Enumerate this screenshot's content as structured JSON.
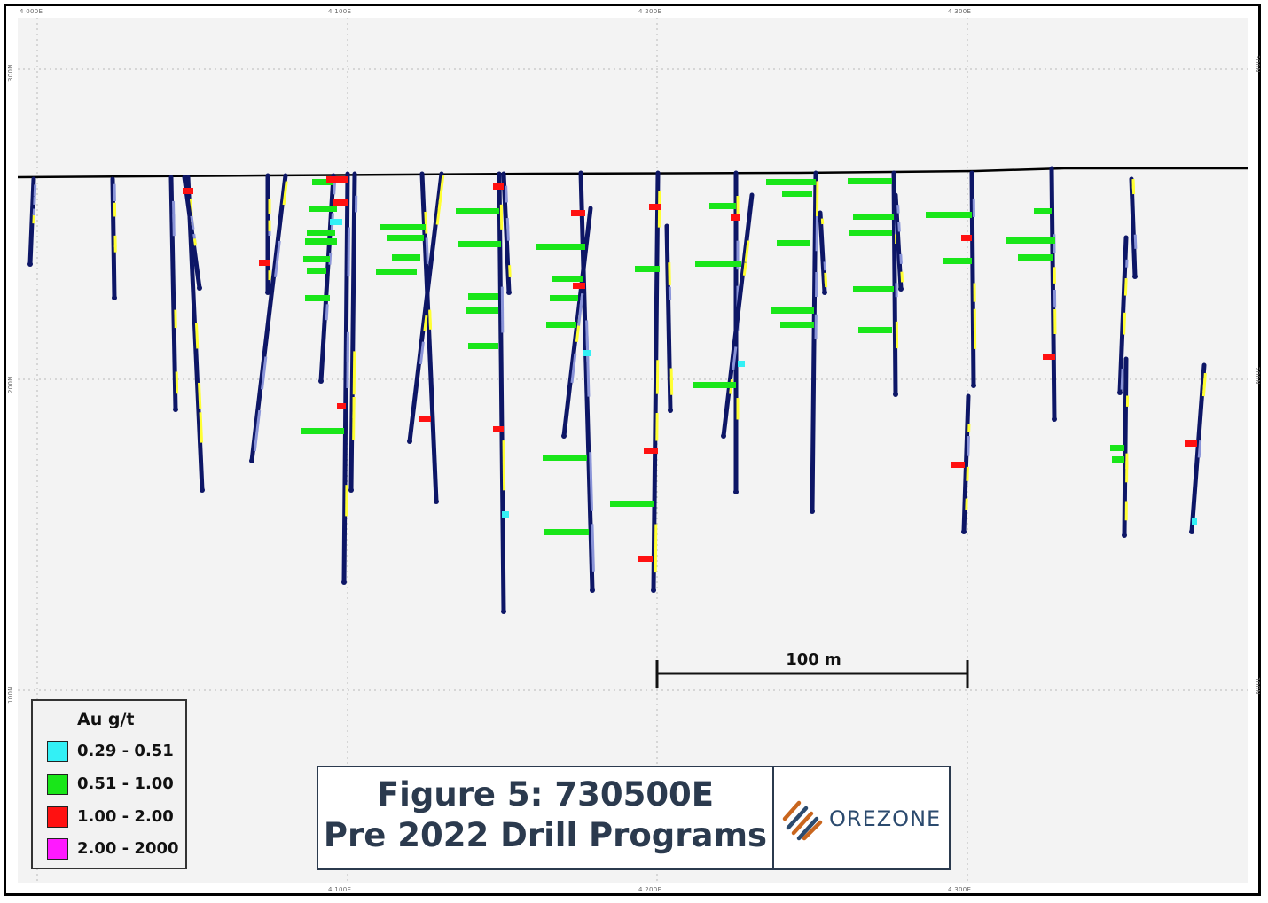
{
  "figure": {
    "title_line1": "Figure 5: 730500E",
    "title_line2": "Pre 2022 Drill Programs",
    "logo_text": "OREZONE"
  },
  "axes": {
    "easting_labels": [
      "4 000E",
      "4 100E",
      "4 200E",
      "4 300E"
    ],
    "northing_labels": [
      "300N",
      "200N",
      "100N"
    ]
  },
  "scale_bar": {
    "label": "100 m",
    "length_m": 100
  },
  "legend": {
    "title": "Au g/t",
    "items": [
      {
        "range": "0.29 - 0.51",
        "color": "#33f0f5"
      },
      {
        "range": "0.51 - 1.00",
        "color": "#19e619"
      },
      {
        "range": "1.00 - 2.00",
        "color": "#ff1111"
      },
      {
        "range": "2.00 - 2000",
        "color": "#ff19ff"
      }
    ]
  },
  "colors": {
    "background": "#f3f3f3",
    "drill_trace": "#0d1666",
    "trace_alt": "#ffff33",
    "trace_light": "#8a94d8",
    "topography": "#000000"
  }
}
